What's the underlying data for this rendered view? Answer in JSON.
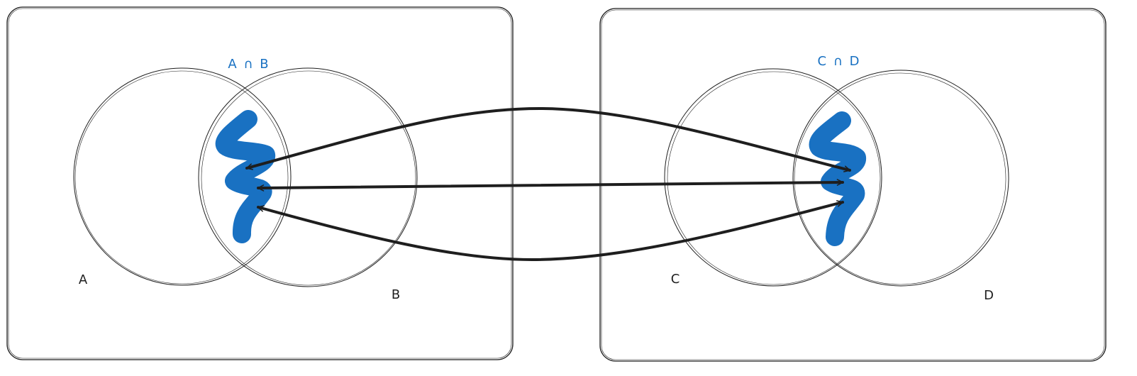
{
  "diagram": {
    "left_panel": {
      "set_a_label": "A",
      "set_b_label": "B",
      "intersection_label": "A ∩ B"
    },
    "right_panel": {
      "set_c_label": "C",
      "set_d_label": "D",
      "intersection_label": "C ∩ D"
    },
    "colors": {
      "stroke": "#1e1e1e",
      "highlight": "#1971c2",
      "background": "#ffffff"
    }
  }
}
